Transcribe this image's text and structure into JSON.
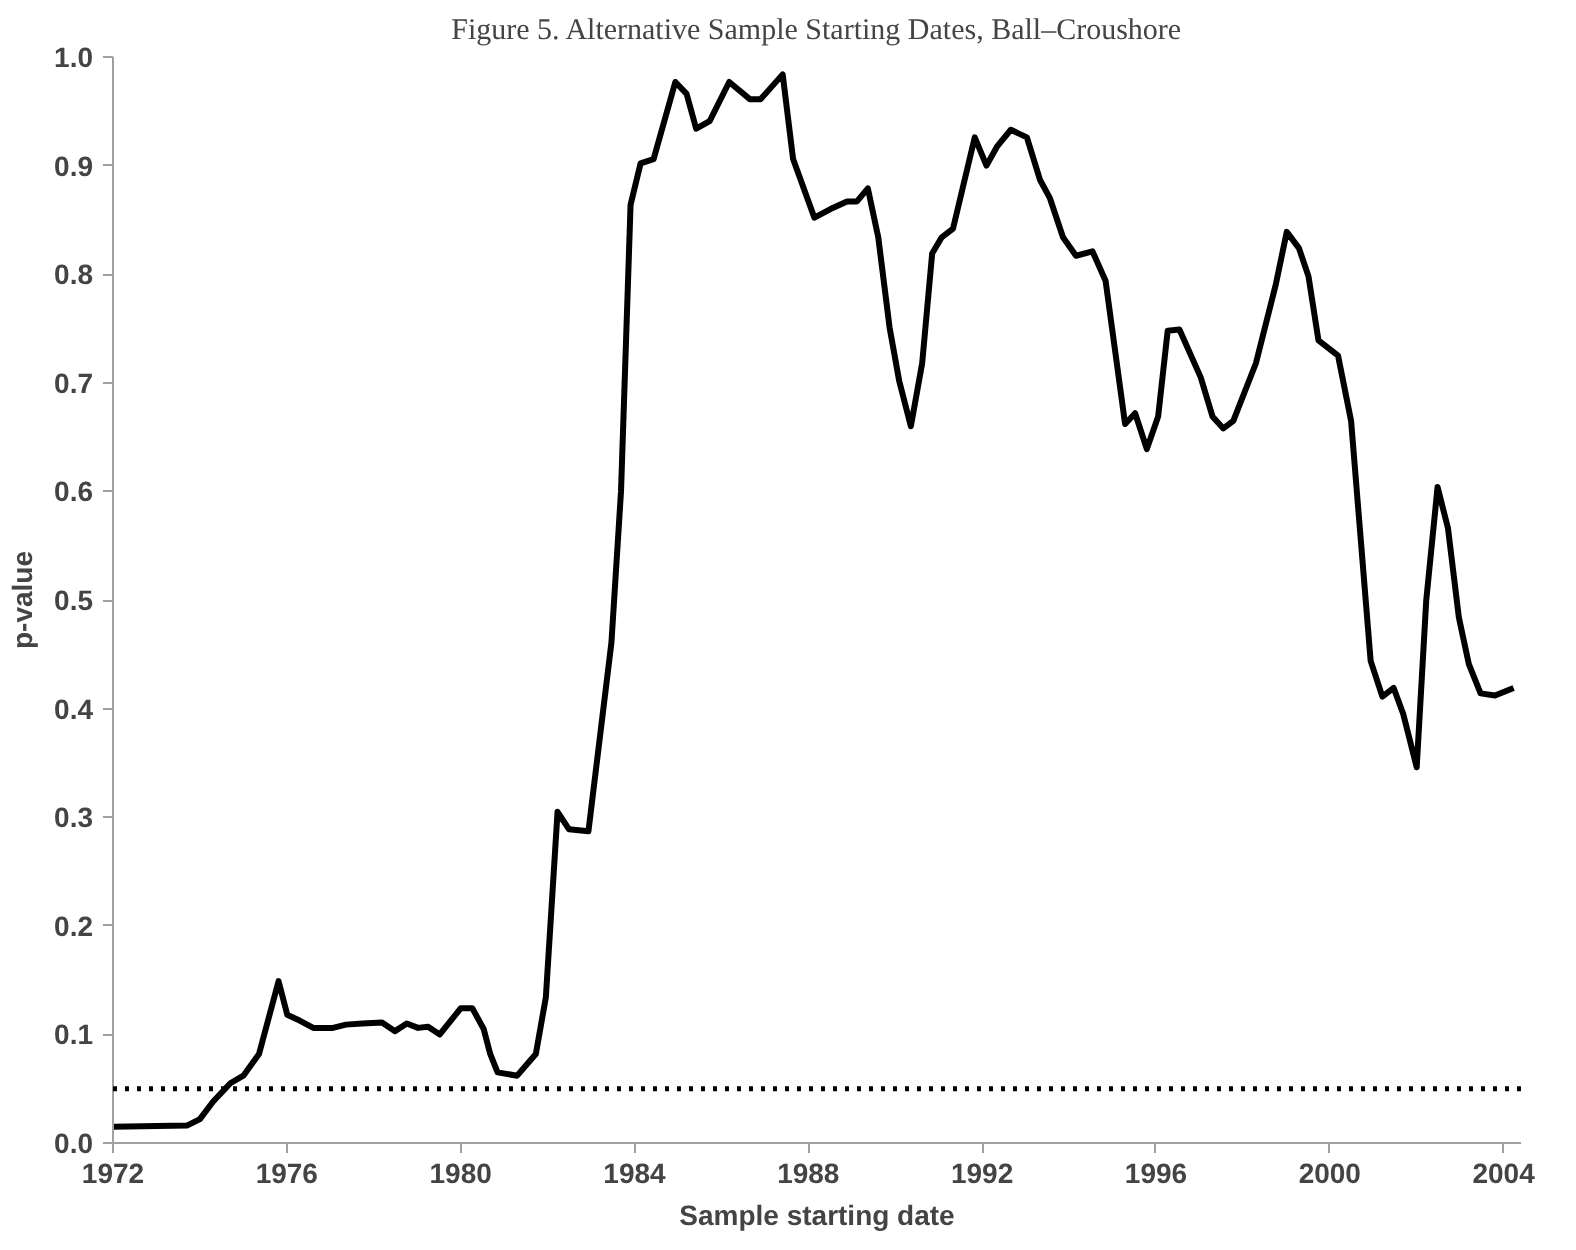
{
  "chart_data": {
    "type": "line",
    "title": "Figure 5. Alternative Sample Starting Dates, Ball–Croushore",
    "xlabel": "Sample starting date",
    "ylabel": "p-value",
    "xlim": [
      1972,
      2004.4
    ],
    "xticks": [
      1972,
      1976,
      1980,
      1984,
      1988,
      1992,
      1996,
      2000,
      2004
    ],
    "ylim": [
      0,
      1
    ],
    "yticks": [
      {
        "value": 0,
        "label": "0.0"
      },
      0.1,
      0.2,
      0.3,
      0.4,
      0.5,
      0.6,
      0.7,
      0.8,
      0.9,
      {
        "value": 1,
        "label": "1.0"
      }
    ],
    "grid": false,
    "line_style": "solid",
    "marker": "none",
    "ref_lines": [
      {
        "axis": "y",
        "value": 0.05,
        "label": null,
        "color": "#000000",
        "line_style": "dotted"
      }
    ],
    "series": [
      {
        "color": "#000000",
        "x": [
          1972,
          1973.7,
          1974.0,
          1974.3,
          1974.7,
          1975.0,
          1975.36,
          1975.81,
          1976.01,
          1976.23,
          1976.61,
          1977.06,
          1977.36,
          1977.74,
          1978.19,
          1978.49,
          1978.76,
          1979.02,
          1979.25,
          1979.52,
          1980.0,
          1980.27,
          1980.53,
          1980.68,
          1980.85,
          1981.3,
          1981.73,
          1981.96,
          1982.23,
          1982.49,
          1982.94,
          1983.47,
          1983.69,
          1983.91,
          1984.14,
          1984.44,
          1984.94,
          1985.2,
          1985.42,
          1985.73,
          1986.18,
          1986.66,
          1986.9,
          1987.41,
          1987.65,
          1988.14,
          1988.51,
          1988.89,
          1989.12,
          1989.37,
          1989.61,
          1989.87,
          1990.09,
          1990.36,
          1990.62,
          1990.85,
          1991.07,
          1991.33,
          1991.83,
          1992.1,
          1992.35,
          1992.66,
          1993.03,
          1993.33,
          1993.56,
          1993.86,
          1994.16,
          1994.54,
          1994.84,
          1995.29,
          1995.52,
          1995.79,
          1996.05,
          1996.27,
          1996.54,
          1997.03,
          1997.3,
          1997.55,
          1997.78,
          1998.3,
          1998.76,
          1999.01,
          1999.29,
          1999.51,
          1999.74,
          2000.19,
          2000.49,
          2000.94,
          2001.21,
          2001.47,
          2001.69,
          2002.0,
          2002.22,
          2002.48,
          2002.72,
          2002.97,
          2003.2,
          2003.47,
          2003.8,
          2004.23
        ],
        "values": [
          0.015,
          0.016,
          0.022,
          0.038,
          0.055,
          0.062,
          0.082,
          0.149,
          0.118,
          0.114,
          0.106,
          0.106,
          0.109,
          0.11,
          0.111,
          0.103,
          0.11,
          0.106,
          0.107,
          0.1,
          0.124,
          0.124,
          0.105,
          0.082,
          0.065,
          0.062,
          0.082,
          0.134,
          0.305,
          0.289,
          0.287,
          0.461,
          0.6,
          0.864,
          0.902,
          0.906,
          0.977,
          0.966,
          0.934,
          0.941,
          0.977,
          0.961,
          0.961,
          0.984,
          0.906,
          0.852,
          0.86,
          0.867,
          0.867,
          0.879,
          0.834,
          0.751,
          0.702,
          0.66,
          0.718,
          0.819,
          0.834,
          0.842,
          0.926,
          0.9,
          0.918,
          0.933,
          0.926,
          0.887,
          0.87,
          0.834,
          0.817,
          0.821,
          0.794,
          0.662,
          0.672,
          0.639,
          0.669,
          0.748,
          0.749,
          0.705,
          0.669,
          0.658,
          0.665,
          0.718,
          0.791,
          0.839,
          0.824,
          0.798,
          0.739,
          0.725,
          0.665,
          0.444,
          0.411,
          0.419,
          0.395,
          0.346,
          0.5,
          0.604,
          0.566,
          0.484,
          0.441,
          0.414,
          0.412,
          0.419
        ]
      }
    ]
  }
}
